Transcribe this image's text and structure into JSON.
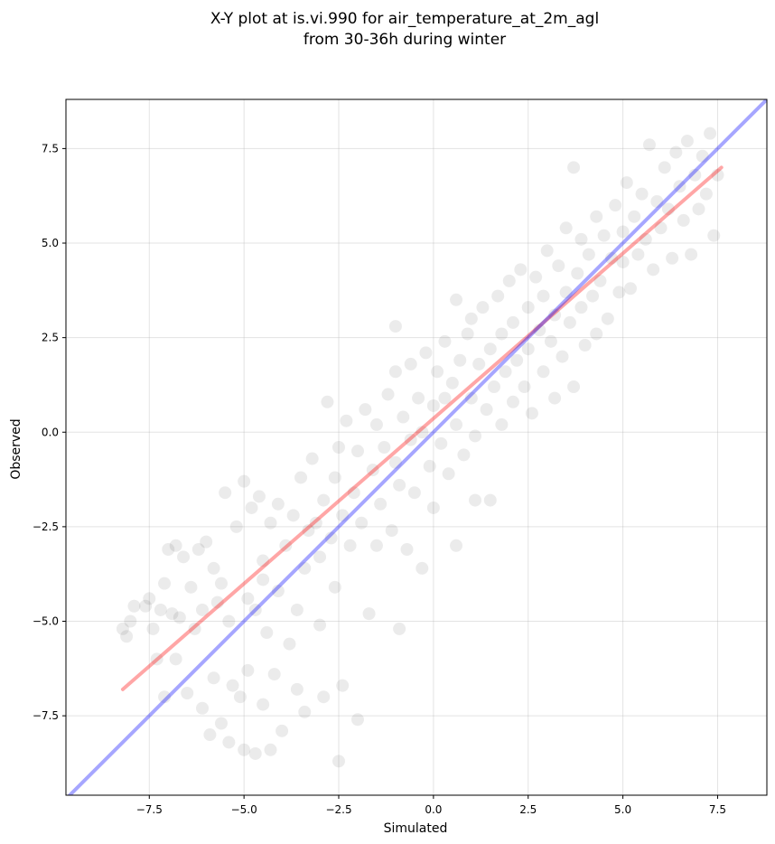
{
  "chart_data": {
    "type": "scatter",
    "title": "X-Y plot at is.vi.990 for air_temperature_at_2m_agl",
    "subtitle": "from 30-36h during winter",
    "xlabel": "Simulated",
    "ylabel": "Observed",
    "xlim": [
      -9.7,
      8.8
    ],
    "ylim": [
      -9.6,
      8.8
    ],
    "xticks": [
      -7.5,
      -5.0,
      -2.5,
      0.0,
      2.5,
      5.0,
      7.5
    ],
    "yticks": [
      -7.5,
      -5.0,
      -2.5,
      0.0,
      2.5,
      5.0,
      7.5
    ],
    "xtick_labels": [
      "−7.5",
      "−5.0",
      "−2.5",
      "0.0",
      "2.5",
      "5.0",
      "7.5"
    ],
    "ytick_labels": [
      "−7.5",
      "−5.0",
      "−2.5",
      "0.0",
      "2.5",
      "5.0",
      "7.5"
    ],
    "grid": true,
    "point_color": "#000000",
    "point_opacity": 0.08,
    "series": [
      {
        "points": [
          [
            -8.2,
            -5.2
          ],
          [
            -8.1,
            -5.4
          ],
          [
            -8.0,
            -5.0
          ],
          [
            -7.9,
            -4.6
          ],
          [
            -7.6,
            -4.6
          ],
          [
            -7.5,
            -4.4
          ],
          [
            -7.4,
            -5.2
          ],
          [
            -7.3,
            -6.0
          ],
          [
            -7.2,
            -4.7
          ],
          [
            -7.1,
            -7.0
          ],
          [
            -7.1,
            -4.0
          ],
          [
            -7.0,
            -3.1
          ],
          [
            -6.9,
            -4.8
          ],
          [
            -6.8,
            -3.0
          ],
          [
            -6.7,
            -4.9
          ],
          [
            -6.6,
            -3.3
          ],
          [
            -6.5,
            -6.9
          ],
          [
            -6.4,
            -4.1
          ],
          [
            -6.3,
            -5.2
          ],
          [
            -6.2,
            -3.1
          ],
          [
            -6.1,
            -7.3
          ],
          [
            -6.1,
            -4.7
          ],
          [
            -6.0,
            -2.9
          ],
          [
            -5.9,
            -8.0
          ],
          [
            -5.8,
            -3.6
          ],
          [
            -5.8,
            -6.5
          ],
          [
            -5.7,
            -4.5
          ],
          [
            -5.6,
            -4.0
          ],
          [
            -5.6,
            -7.7
          ],
          [
            -5.5,
            -1.6
          ],
          [
            -5.4,
            -8.2
          ],
          [
            -5.4,
            -5.0
          ],
          [
            -5.3,
            -6.7
          ],
          [
            -5.2,
            -2.5
          ],
          [
            -5.1,
            -7.0
          ],
          [
            -5.0,
            -1.3
          ],
          [
            -5.0,
            -8.4
          ],
          [
            -4.9,
            -4.4
          ],
          [
            -4.9,
            -6.3
          ],
          [
            -4.8,
            -2.0
          ],
          [
            -4.7,
            -8.5
          ],
          [
            -4.7,
            -4.7
          ],
          [
            -4.6,
            -1.7
          ],
          [
            -4.5,
            -3.4
          ],
          [
            -4.5,
            -7.2
          ],
          [
            -4.4,
            -5.3
          ],
          [
            -4.3,
            -2.4
          ],
          [
            -4.3,
            -8.4
          ],
          [
            -4.2,
            -6.4
          ],
          [
            -4.1,
            -4.2
          ],
          [
            -4.1,
            -1.9
          ],
          [
            -4.0,
            -7.9
          ],
          [
            -3.9,
            -3.0
          ],
          [
            -3.8,
            -5.6
          ],
          [
            -3.7,
            -2.2
          ],
          [
            -3.6,
            -4.7
          ],
          [
            -3.6,
            -6.8
          ],
          [
            -3.5,
            -1.2
          ],
          [
            -3.4,
            -3.6
          ],
          [
            -3.3,
            -2.6
          ],
          [
            -3.2,
            -0.7
          ],
          [
            -3.1,
            -2.4
          ],
          [
            -3.0,
            -5.1
          ],
          [
            -3.0,
            -3.3
          ],
          [
            -2.9,
            -1.8
          ],
          [
            -2.9,
            -7.0
          ],
          [
            -2.8,
            0.8
          ],
          [
            -2.7,
            -2.8
          ],
          [
            -2.6,
            -1.2
          ],
          [
            -2.6,
            -4.1
          ],
          [
            -2.5,
            -0.4
          ],
          [
            -2.4,
            -6.7
          ],
          [
            -2.4,
            -2.2
          ],
          [
            -2.3,
            0.3
          ],
          [
            -2.2,
            -3.0
          ],
          [
            -2.1,
            -1.6
          ],
          [
            -2.0,
            -7.6
          ],
          [
            -2.0,
            -0.5
          ],
          [
            -1.9,
            -2.4
          ],
          [
            -1.8,
            0.6
          ],
          [
            -1.7,
            -4.8
          ],
          [
            -1.6,
            -1.0
          ],
          [
            -1.5,
            -3.0
          ],
          [
            -1.5,
            0.2
          ],
          [
            -1.4,
            -1.9
          ],
          [
            -1.3,
            -0.4
          ],
          [
            -1.2,
            1.0
          ],
          [
            -1.1,
            -2.6
          ],
          [
            -1.0,
            -0.8
          ],
          [
            -1.0,
            1.6
          ],
          [
            -0.9,
            -5.2
          ],
          [
            -0.9,
            -1.4
          ],
          [
            -0.8,
            0.4
          ],
          [
            -0.7,
            -3.1
          ],
          [
            -0.6,
            -0.2
          ],
          [
            -0.6,
            1.8
          ],
          [
            -0.5,
            -1.6
          ],
          [
            -0.4,
            0.9
          ],
          [
            -0.3,
            -3.6
          ],
          [
            -0.3,
            0.0
          ],
          [
            -0.2,
            2.1
          ],
          [
            -0.1,
            -0.9
          ],
          [
            0.0,
            0.7
          ],
          [
            0.0,
            -2.0
          ],
          [
            0.1,
            1.6
          ],
          [
            0.2,
            -0.3
          ],
          [
            0.3,
            2.4
          ],
          [
            0.3,
            0.9
          ],
          [
            0.4,
            -1.1
          ],
          [
            0.5,
            1.3
          ],
          [
            0.6,
            3.5
          ],
          [
            0.6,
            0.2
          ],
          [
            0.7,
            1.9
          ],
          [
            0.8,
            -0.6
          ],
          [
            0.9,
            2.6
          ],
          [
            1.0,
            0.9
          ],
          [
            1.0,
            3.0
          ],
          [
            1.1,
            -0.1
          ],
          [
            1.2,
            1.8
          ],
          [
            1.3,
            3.3
          ],
          [
            1.4,
            0.6
          ],
          [
            1.5,
            -1.8
          ],
          [
            1.5,
            2.2
          ],
          [
            1.6,
            1.2
          ],
          [
            1.7,
            3.6
          ],
          [
            1.8,
            0.2
          ],
          [
            1.8,
            2.6
          ],
          [
            1.9,
            1.6
          ],
          [
            2.0,
            4.0
          ],
          [
            2.1,
            0.8
          ],
          [
            2.1,
            2.9
          ],
          [
            2.2,
            1.9
          ],
          [
            2.3,
            4.3
          ],
          [
            2.4,
            1.2
          ],
          [
            2.5,
            3.3
          ],
          [
            2.5,
            2.2
          ],
          [
            2.6,
            0.5
          ],
          [
            2.7,
            4.1
          ],
          [
            2.8,
            2.7
          ],
          [
            2.9,
            1.6
          ],
          [
            2.9,
            3.6
          ],
          [
            3.0,
            4.8
          ],
          [
            3.1,
            2.4
          ],
          [
            3.2,
            3.1
          ],
          [
            3.2,
            0.9
          ],
          [
            3.3,
            4.4
          ],
          [
            3.4,
            2.0
          ],
          [
            3.5,
            3.7
          ],
          [
            3.5,
            5.4
          ],
          [
            3.6,
            2.9
          ],
          [
            3.7,
            1.2
          ],
          [
            3.8,
            4.2
          ],
          [
            3.9,
            3.3
          ],
          [
            3.9,
            5.1
          ],
          [
            4.0,
            2.3
          ],
          [
            4.1,
            4.7
          ],
          [
            4.2,
            3.6
          ],
          [
            4.3,
            2.6
          ],
          [
            4.3,
            5.7
          ],
          [
            4.4,
            4.0
          ],
          [
            4.5,
            5.2
          ],
          [
            4.6,
            3.0
          ],
          [
            4.7,
            4.6
          ],
          [
            4.8,
            6.0
          ],
          [
            4.9,
            3.7
          ],
          [
            5.0,
            5.3
          ],
          [
            5.0,
            4.5
          ],
          [
            5.1,
            6.6
          ],
          [
            5.2,
            3.8
          ],
          [
            5.3,
            5.7
          ],
          [
            5.4,
            4.7
          ],
          [
            5.5,
            6.3
          ],
          [
            5.6,
            5.1
          ],
          [
            5.7,
            7.6
          ],
          [
            5.8,
            4.3
          ],
          [
            5.9,
            6.1
          ],
          [
            6.0,
            5.4
          ],
          [
            6.1,
            7.0
          ],
          [
            6.2,
            5.9
          ],
          [
            6.3,
            4.6
          ],
          [
            6.4,
            7.4
          ],
          [
            6.5,
            6.5
          ],
          [
            6.6,
            5.6
          ],
          [
            6.7,
            7.7
          ],
          [
            6.8,
            4.7
          ],
          [
            6.9,
            6.8
          ],
          [
            7.0,
            5.9
          ],
          [
            7.1,
            7.3
          ],
          [
            7.2,
            6.3
          ],
          [
            7.3,
            7.9
          ],
          [
            7.4,
            5.2
          ],
          [
            7.5,
            6.8
          ],
          [
            3.7,
            7.0
          ],
          [
            -1.0,
            2.8
          ],
          [
            0.6,
            -3.0
          ],
          [
            -2.5,
            -8.7
          ],
          [
            -3.4,
            -7.4
          ],
          [
            1.1,
            -1.8
          ],
          [
            -6.8,
            -6.0
          ],
          [
            -4.5,
            -3.9
          ]
        ]
      }
    ],
    "lines": [
      {
        "color": "#ff0000",
        "opacity": 0.35,
        "points": [
          [
            -8.2,
            -6.8
          ],
          [
            7.6,
            7.0
          ]
        ]
      },
      {
        "color": "#0000ff",
        "opacity": 0.35,
        "points": [
          [
            -9.7,
            -9.7
          ],
          [
            8.8,
            8.8
          ]
        ]
      }
    ]
  }
}
